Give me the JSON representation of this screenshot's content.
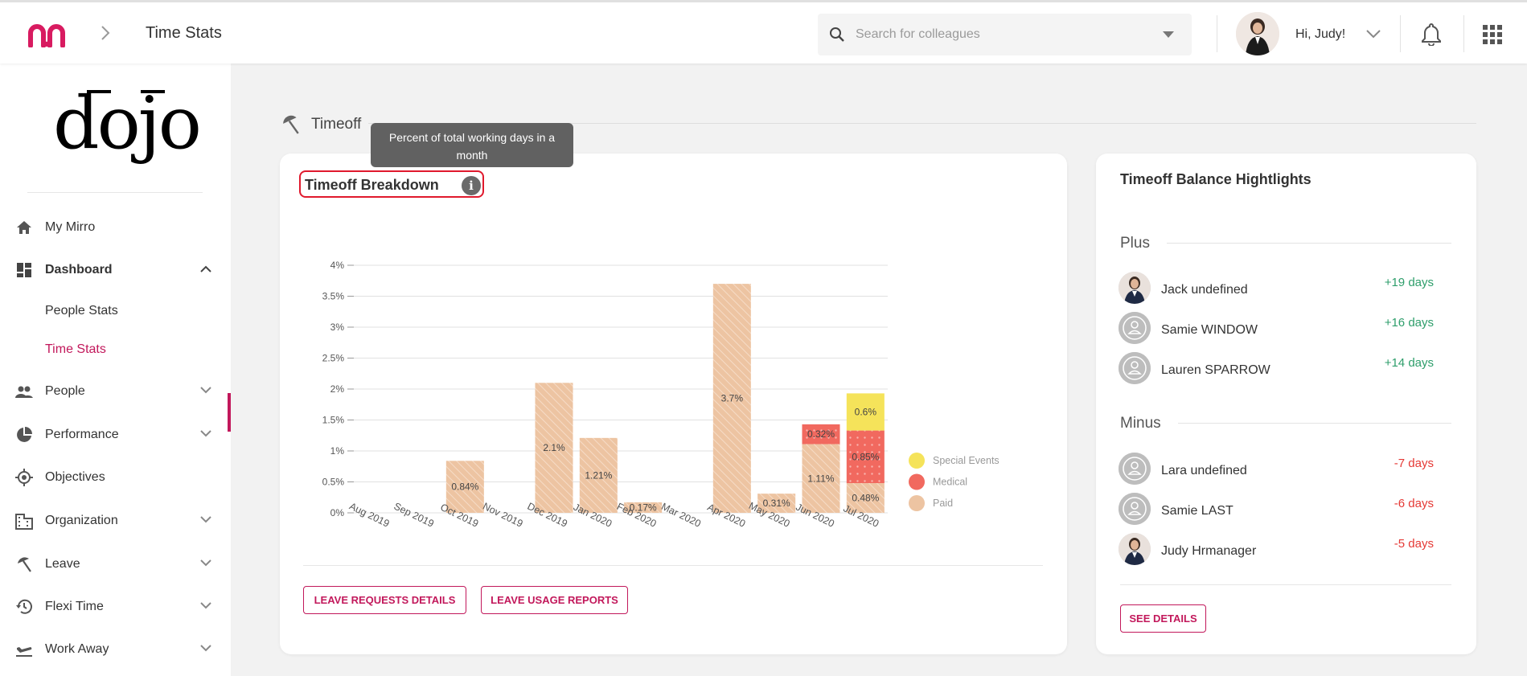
{
  "header": {
    "breadcrumb_title": "Time Stats",
    "search_placeholder": "Search for colleagues",
    "greeting": "Hi, Judy!"
  },
  "sidebar": {
    "brand": "dojo",
    "items": [
      {
        "label": "My Mirro",
        "icon": "home-icon"
      },
      {
        "label": "Dashboard",
        "icon": "dashboard-icon"
      },
      {
        "label": "People Stats"
      },
      {
        "label": "Time Stats"
      },
      {
        "label": "People",
        "icon": "people-icon"
      },
      {
        "label": "Performance",
        "icon": "pie-icon"
      },
      {
        "label": "Objectives",
        "icon": "target-icon"
      },
      {
        "label": "Organization",
        "icon": "building-icon"
      },
      {
        "label": "Leave",
        "icon": "beach-icon"
      },
      {
        "label": "Flexi Time",
        "icon": "history-icon"
      },
      {
        "label": "Work Away",
        "icon": "plane-icon"
      }
    ]
  },
  "section": {
    "title": "Timeoff"
  },
  "breakdown": {
    "title": "Timeoff Breakdown",
    "info_glyph": "i",
    "tooltip": "Percent of total working days in a month",
    "buttons": {
      "requests": "LEAVE REQUESTS DETAILS",
      "reports": "LEAVE USAGE REPORTS"
    }
  },
  "chart_data": {
    "type": "bar",
    "stacked": true,
    "categories": [
      "Aug 2019",
      "Sep 2019",
      "Oct 2019",
      "Nov 2019",
      "Dec 2019",
      "Jan 2020",
      "Feb 2020",
      "Mar 2020",
      "Apr 2020",
      "May 2020",
      "Jun 2020",
      "Jul 2020"
    ],
    "yticks": [
      "0%",
      "0.5%",
      "1%",
      "1.5%",
      "2%",
      "2.5%",
      "3%",
      "3.5%",
      "4%"
    ],
    "ylim": [
      0,
      4
    ],
    "legend_position": "right",
    "series": [
      {
        "name": "Paid",
        "color": "#edc4a2",
        "values": [
          0,
          0,
          0.84,
          0,
          2.1,
          1.21,
          0.17,
          0,
          3.7,
          0.31,
          1.11,
          0.48
        ]
      },
      {
        "name": "Medical",
        "color": "#f1695f",
        "values": [
          0,
          0,
          0,
          0,
          0,
          0,
          0,
          0,
          0,
          0,
          0.32,
          0.85
        ]
      },
      {
        "name": "Special Events",
        "color": "#f5e35a",
        "values": [
          0,
          0,
          0,
          0,
          0,
          0,
          0,
          0,
          0,
          0,
          0,
          0.6
        ]
      }
    ],
    "data_labels": [
      {
        "category": "Oct 2019",
        "series": "Paid",
        "text": "0.84%"
      },
      {
        "category": "Dec 2019",
        "series": "Paid",
        "text": "2.1%"
      },
      {
        "category": "Jan 2020",
        "series": "Paid",
        "text": "1.21%"
      },
      {
        "category": "Feb 2020",
        "series": "Paid",
        "text": "0.17%"
      },
      {
        "category": "Apr 2020",
        "series": "Paid",
        "text": "3.7%"
      },
      {
        "category": "May 2020",
        "series": "Paid",
        "text": "0.31%"
      },
      {
        "category": "Jun 2020",
        "series": "Paid",
        "text": "1.11%"
      },
      {
        "category": "Jun 2020",
        "series": "Medical",
        "text": "0.32%"
      },
      {
        "category": "Jul 2020",
        "series": "Paid",
        "text": "0.48%"
      },
      {
        "category": "Jul 2020",
        "series": "Medical",
        "text": "0.85%"
      },
      {
        "category": "Jul 2020",
        "series": "Special Events",
        "text": "0.6%"
      }
    ]
  },
  "balance": {
    "title": "Timeoff Balance Hightlights",
    "plus_label": "Plus",
    "minus_label": "Minus",
    "plus": [
      {
        "name": "Jack undefined",
        "days": "+19 days",
        "avatar": "photo"
      },
      {
        "name": "Samie WINDOW",
        "days": "+16 days",
        "avatar": "placeholder"
      },
      {
        "name": "Lauren SPARROW",
        "days": "+14 days",
        "avatar": "placeholder"
      }
    ],
    "minus": [
      {
        "name": "Lara undefined",
        "days": "-7 days",
        "avatar": "placeholder"
      },
      {
        "name": "Samie LAST",
        "days": "-6 days",
        "avatar": "placeholder"
      },
      {
        "name": "Judy Hrmanager",
        "days": "-5 days",
        "avatar": "photo"
      }
    ],
    "see_details": "SEE DETAILS"
  },
  "colors": {
    "accent": "#c2185b",
    "plus": "#2e9e6b",
    "minus": "#e53935"
  }
}
